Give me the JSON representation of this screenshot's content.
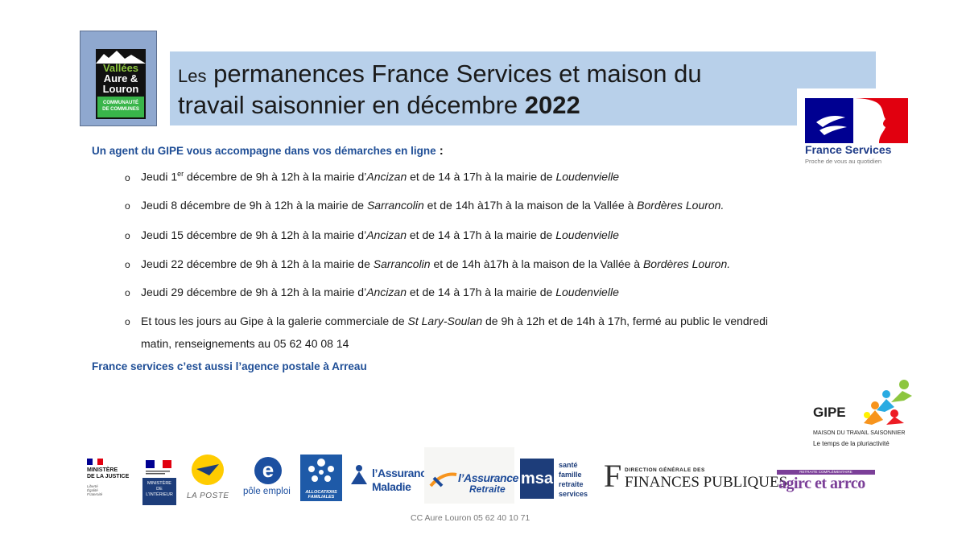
{
  "logo_left": {
    "line1": "Vallées",
    "line2": "Aure &",
    "line3": "Louron",
    "band1": "COMMUNAUTÉ",
    "band2": "DE COMMUNES"
  },
  "title": {
    "prefix": "Les",
    "line1_rest": " permanences France Services et maison du",
    "line2_start": "travail saisonnier en décembre ",
    "year": "2022"
  },
  "france_services_logo": {
    "name": "France Services",
    "tagline": "Proche de vous au quotidien"
  },
  "intro": {
    "text": "Un agent du GIPE vous accompagne dans vos démarches en ligne",
    "colon": " :"
  },
  "schedule": [
    {
      "a": "Jeudi 1",
      "sup": "er",
      "b": " décembre  de 9h à 12h à la mairie d’",
      "place1": "Ancizan",
      "c": " et de 14 à 17h à la mairie de ",
      "place2": "Loudenvielle",
      "d": ""
    },
    {
      "a": "Jeudi 8 décembre   de 9h à 12h à la mairie de ",
      "sup": "",
      "b": "",
      "place1": "Sarrancolin",
      "c": "  et de 14h à17h à la maison de la Vallée à ",
      "place2": "Bordères Louron.",
      "d": ""
    },
    {
      "a": "Jeudi 15 décembre  de 9h à 12h à la mairie d’",
      "sup": "",
      "b": "",
      "place1": "Ancizan",
      "c": " et de 14 à 17h à la mairie de ",
      "place2": "Loudenvielle",
      "d": ""
    },
    {
      "a": "Jeudi 22 décembre  de 9h à 12h à la mairie de ",
      "sup": "",
      "b": "",
      "place1": "Sarrancolin",
      "c": " et de 14h à17h à la maison de la Vallée à ",
      "place2": "Bordères Louron.",
      "d": ""
    },
    {
      "a": "Jeudi 29 décembre de 9h à 12h à la mairie d’",
      "sup": "",
      "b": "",
      "place1": "Ancizan",
      "c": " et de 14 à 17h à la mairie de ",
      "place2": "Loudenvielle",
      "d": ""
    },
    {
      "a": "Et tous les jours  au Gipe à la galerie commerciale de ",
      "sup": "",
      "b": "",
      "place1": "St Lary-Soulan",
      "c": "  de 9h à 12h et de 14h à 17h, fermé au public le vendredi",
      "place2": "",
      "d": ""
    }
  ],
  "schedule_continuation": "matin, renseignements au 05 62 40 08 14",
  "footer_note": "France services c’est aussi l’agence postale à Arreau",
  "gipe_logo": {
    "name": "GIPE",
    "line1": "MAISON DU TRAVAIL SAISONNIER",
    "line2": "Le temps de la pluriactivité"
  },
  "partners": {
    "justice": {
      "l1": "MINISTÈRE",
      "l2": "DE LA JUSTICE",
      "motto1": "Liberté",
      "motto2": "Égalité",
      "motto3": "Fraternité"
    },
    "interieur": {
      "l1": "MINISTÈRE",
      "l2": "DE",
      "l3": "L’INTÉRIEUR"
    },
    "la_poste": "LA POSTE",
    "pole_emploi": "pôle emploi",
    "caf": {
      "l1": "ALLOCATIONS",
      "l2": "FAMILIALES"
    },
    "maladie": {
      "l1": "l’Assurance",
      "l2": "Maladie"
    },
    "retraite": {
      "l1": "l’Assurance",
      "l2": "Retraite"
    },
    "msa": {
      "logo": "msa",
      "l1": "santé",
      "l2": "famille",
      "l3": "retraite",
      "l4": "services"
    },
    "dgfip": {
      "mark": "F",
      "l1": "DIRECTION GÉNÉRALE DES",
      "l2": "FINANCES PUBLIQUES"
    },
    "agirc": {
      "bar": "RETRAITE COMPLÉMENTAIRE",
      "text": "agirc et arrco"
    }
  },
  "contact": "CC Aure Louron  05 62 40 10 71",
  "colors": {
    "banner": "#b8d0ea",
    "accent_blue": "#1f4e96",
    "marianne_red": "#e1000f",
    "marianne_blue": "#000091"
  }
}
